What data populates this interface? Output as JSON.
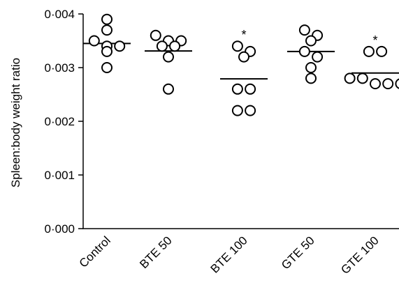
{
  "chart_data": {
    "type": "scatter",
    "title": "",
    "xlabel": "",
    "ylabel": "Spleen:body weight ratio",
    "ylim": [
      0.0,
      0.004
    ],
    "yticks": [
      0.0,
      0.001,
      0.002,
      0.003,
      0.004
    ],
    "ytick_labels": [
      "0·000",
      "0·001",
      "0·002",
      "0·003",
      "0·004"
    ],
    "categories": [
      "Control",
      "BTE 50",
      "BTE 100",
      "GTE 50",
      "GTE 100"
    ],
    "groups": [
      {
        "name": "Control",
        "points": [
          0.0035,
          0.0034,
          0.0037,
          0.0033,
          0.0039,
          0.0034,
          0.003
        ],
        "mean": 0.00345,
        "annotation": ""
      },
      {
        "name": "BTE 50",
        "points": [
          0.0036,
          0.0034,
          0.0035,
          0.0034,
          0.0035,
          0.0032,
          0.0026
        ],
        "mean": 0.00331,
        "annotation": ""
      },
      {
        "name": "BTE 100",
        "points": [
          0.0034,
          0.0032,
          0.0033,
          0.0026,
          0.0026,
          0.0022,
          0.0022
        ],
        "mean": 0.00279,
        "annotation": "*"
      },
      {
        "name": "GTE 50",
        "points": [
          0.0037,
          0.0033,
          0.0035,
          0.0032,
          0.0036,
          0.0028,
          0.003
        ],
        "mean": 0.0033,
        "annotation": ""
      },
      {
        "name": "GTE 100",
        "points": [
          0.0033,
          0.0033,
          0.0028,
          0.0027,
          0.0027,
          0.0027,
          0.0028
        ],
        "mean": 0.0029,
        "annotation": "*"
      }
    ],
    "marker": "open-circle",
    "colors": {
      "marker_stroke": "#000000",
      "marker_fill": "#ffffff",
      "axis": "#000000"
    },
    "grid": false,
    "legend": "none"
  }
}
